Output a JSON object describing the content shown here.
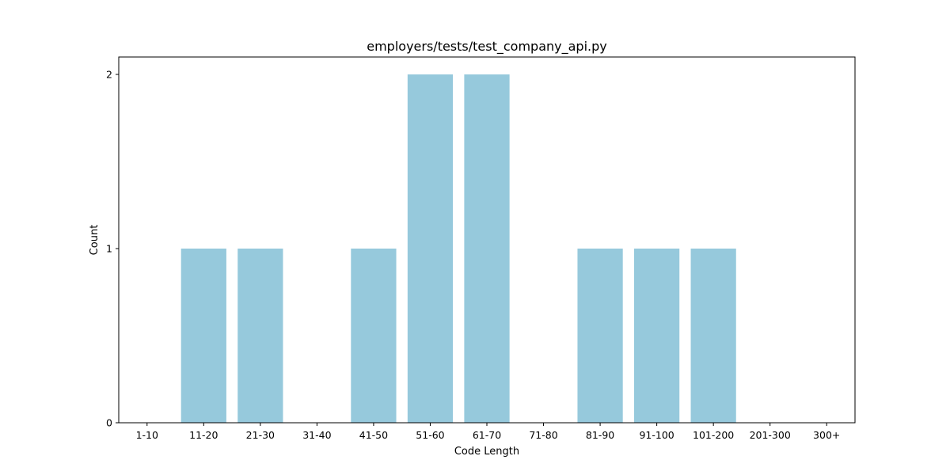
{
  "chart_data": {
    "type": "bar",
    "title": "employers/tests/test_company_api.py",
    "xlabel": "Code Length",
    "ylabel": "Count",
    "categories": [
      "1-10",
      "11-20",
      "21-30",
      "31-40",
      "41-50",
      "51-60",
      "61-70",
      "71-80",
      "81-90",
      "91-100",
      "101-200",
      "201-300",
      "300+"
    ],
    "values": [
      0,
      1,
      1,
      0,
      1,
      2,
      2,
      0,
      1,
      1,
      1,
      0,
      0
    ],
    "ylim": [
      0,
      2.1
    ],
    "yticks": [
      "0",
      "1",
      "2"
    ],
    "grid": false,
    "bar_color": "#96c9dc"
  }
}
